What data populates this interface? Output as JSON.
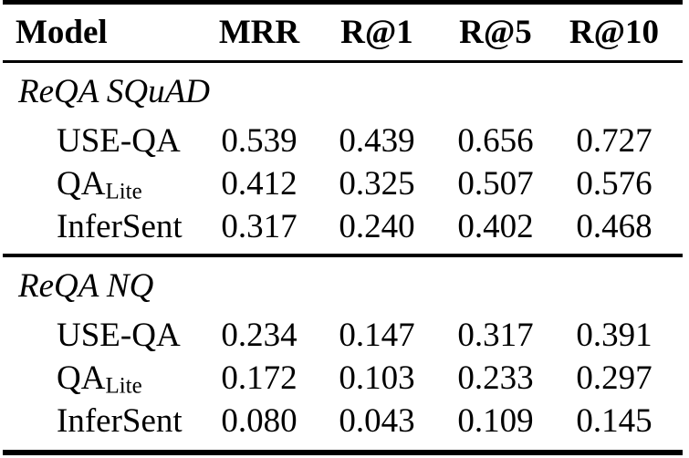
{
  "table": {
    "headers": [
      "Model",
      "MRR",
      "R@1",
      "R@5",
      "R@10"
    ],
    "sections": [
      {
        "title": "ReQA SQuAD",
        "rows": [
          {
            "model": "USE-QA",
            "model_sub": "",
            "values": [
              "0.539",
              "0.439",
              "0.656",
              "0.727"
            ]
          },
          {
            "model": "QA",
            "model_sub": "Lite",
            "values": [
              "0.412",
              "0.325",
              "0.507",
              "0.576"
            ]
          },
          {
            "model": "InferSent",
            "model_sub": "",
            "values": [
              "0.317",
              "0.240",
              "0.402",
              "0.468"
            ]
          }
        ]
      },
      {
        "title": "ReQA NQ",
        "rows": [
          {
            "model": "USE-QA",
            "model_sub": "",
            "values": [
              "0.234",
              "0.147",
              "0.317",
              "0.391"
            ]
          },
          {
            "model": "QA",
            "model_sub": "Lite",
            "values": [
              "0.172",
              "0.103",
              "0.233",
              "0.297"
            ]
          },
          {
            "model": "InferSent",
            "model_sub": "",
            "values": [
              "0.080",
              "0.043",
              "0.109",
              "0.145"
            ]
          }
        ]
      }
    ]
  },
  "colors": {
    "text": "#000000",
    "background": "#ffffff",
    "rule": "#000000"
  }
}
